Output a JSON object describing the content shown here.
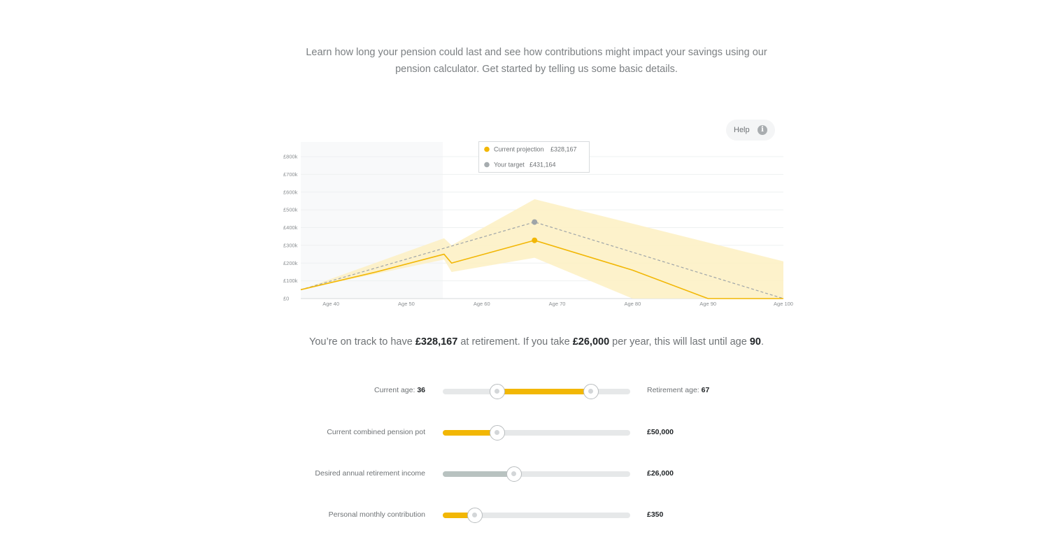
{
  "intro": {
    "line1": "Learn how long your pension could last and see how contributions might impact your savings using our",
    "line2": "pension calculator. Get started by telling us some basic details."
  },
  "help": {
    "label": "Help",
    "icon": "info-icon"
  },
  "legend": {
    "projection_label": "Current projection",
    "projection_value": "£328,167",
    "target_label": "Your target",
    "target_value": "£431,164"
  },
  "chart_data": {
    "type": "area",
    "x_range": [
      36,
      100
    ],
    "y_range": [
      0,
      800000
    ],
    "y_tick_labels": [
      "£0",
      "£100k",
      "£200k",
      "£300k",
      "£400k",
      "£500k",
      "£600k",
      "£700k",
      "£800k"
    ],
    "y_tick_values": [
      0,
      100000,
      200000,
      300000,
      400000,
      500000,
      600000,
      700000,
      800000
    ],
    "x_tick_labels": [
      "Age 40",
      "Age 50",
      "Age 60",
      "Age 70",
      "Age 80",
      "Age 90",
      "Age 100"
    ],
    "x_tick_values": [
      40,
      50,
      60,
      70,
      80,
      90,
      100
    ],
    "shaded_region": [
      36,
      55
    ],
    "series": [
      {
        "name": "Current projection",
        "style": "solid",
        "color": "#f2b705",
        "points": [
          [
            36,
            50000
          ],
          [
            46,
            150000
          ],
          [
            55,
            250000
          ],
          [
            56,
            200000
          ],
          [
            67,
            328167
          ],
          [
            80,
            160000
          ],
          [
            90,
            0
          ],
          [
            100,
            0
          ]
        ]
      },
      {
        "name": "Your target",
        "style": "dashed",
        "color": "#9fa5a8",
        "points": [
          [
            36,
            50000
          ],
          [
            67,
            431164
          ],
          [
            100,
            0
          ]
        ]
      }
    ],
    "band": {
      "color": "#fdf0c2",
      "upper": [
        [
          36,
          50000
        ],
        [
          55,
          340000
        ],
        [
          56,
          300000
        ],
        [
          67,
          560000
        ],
        [
          100,
          210000
        ]
      ],
      "lower": [
        [
          36,
          50000
        ],
        [
          55,
          220000
        ],
        [
          56,
          150000
        ],
        [
          67,
          230000
        ],
        [
          80,
          0
        ],
        [
          100,
          0
        ]
      ]
    },
    "markers": [
      {
        "x": 67,
        "y": 328167,
        "color": "#f2b705"
      },
      {
        "x": 67,
        "y": 431164,
        "color": "#9fa5a8"
      }
    ]
  },
  "summary": {
    "pre": "You’re on track to have ",
    "amount": "£328,167",
    "mid": " at retirement. If you take ",
    "income": "£26,000",
    "mid2": " per year, this will last until age ",
    "age": "90",
    "post": "."
  },
  "sliders": {
    "current_age_label": "Current age: ",
    "current_age": "36",
    "current_age_value": 36,
    "retirement_age_label": "Retirement age: ",
    "retirement_age": "67",
    "retirement_age_value": 67,
    "age_min": 18,
    "age_max": 80,
    "pot_label": "Current combined pension pot",
    "pot_value": "£50,000",
    "pot_fraction": 0.29,
    "income_label": "Desired annual retirement income",
    "income_value": "£26,000",
    "income_fraction": 0.38,
    "contribution_label": "Personal monthly contribution",
    "contribution_value": "£350",
    "contribution_fraction": 0.17,
    "accent": "#f2b705",
    "muted": "#b8c2c0"
  }
}
